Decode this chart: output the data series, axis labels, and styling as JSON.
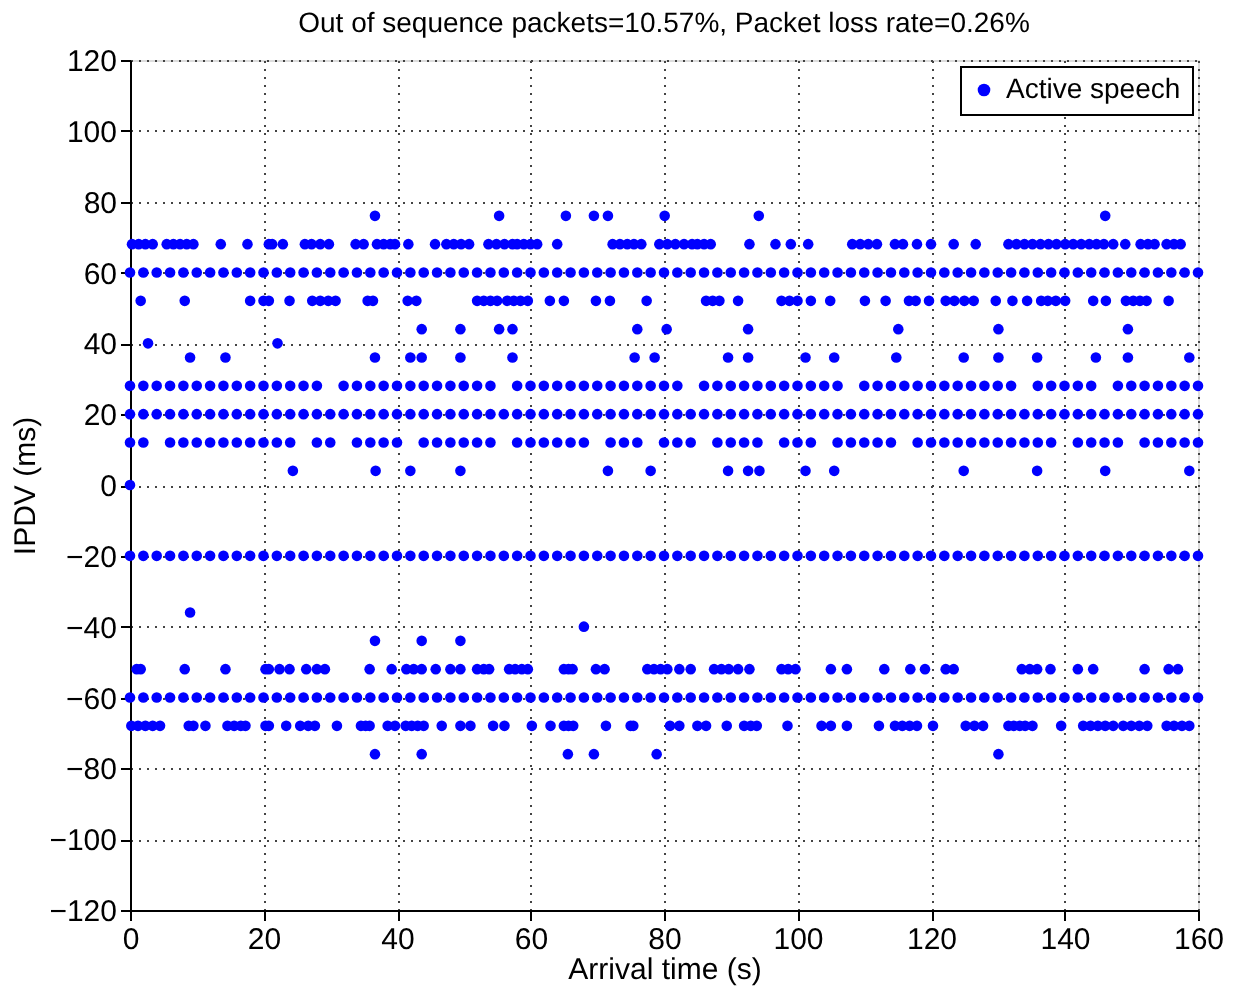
{
  "chart_data": {
    "type": "scatter",
    "title": "Out of sequence packets=10.57%, Packet loss rate=0.26%",
    "xlabel": "Arrival time (s)",
    "ylabel": "IPDV (ms)",
    "xlim": [
      0,
      160
    ],
    "xticks": [
      0,
      20,
      40,
      60,
      80,
      100,
      120,
      140,
      160
    ],
    "ylim": [
      -120,
      120
    ],
    "yticks": [
      -120,
      -100,
      -80,
      -60,
      -40,
      -20,
      0,
      20,
      40,
      60,
      80,
      100,
      120
    ],
    "grid": true,
    "legend": "top right",
    "marker": "circle",
    "series": [
      {
        "name": "Active speech",
        "color": "#0000ff",
        "x": [
          0,
          2,
          4,
          6,
          8,
          10,
          12,
          14,
          16,
          18,
          20,
          22,
          24,
          26,
          28,
          30,
          32,
          34,
          36,
          38,
          40,
          42,
          44,
          46,
          48,
          50,
          52,
          54,
          56,
          58,
          60,
          62,
          64,
          66,
          68,
          70,
          72,
          74,
          76,
          78,
          80,
          82,
          84,
          86,
          88,
          90,
          92,
          94,
          96,
          98,
          100,
          102,
          104,
          106,
          108,
          110,
          112,
          114,
          116,
          118,
          120,
          122,
          124,
          126,
          128,
          130,
          132,
          134,
          136,
          138,
          140,
          142,
          144,
          146,
          148,
          150,
          152,
          154,
          156,
          158,
          160
        ],
        "values": [
          60,
          60,
          60,
          60,
          60,
          60,
          60,
          60,
          60,
          60,
          60,
          60,
          60,
          60,
          60,
          60,
          60,
          60,
          60,
          60,
          60,
          60,
          60,
          60,
          60,
          60,
          60,
          60,
          60,
          60,
          60,
          60,
          60,
          60,
          60,
          60,
          60,
          60,
          60,
          60,
          60,
          60,
          60,
          60,
          60,
          60,
          60,
          60,
          60,
          60,
          60,
          60,
          60,
          60,
          60,
          60,
          60,
          60,
          60,
          60,
          60,
          60,
          60,
          60,
          60,
          60,
          60,
          60,
          60,
          60,
          60,
          60,
          60,
          60,
          60,
          60,
          60,
          60,
          60,
          60,
          60
        ]
      },
      {
        "color": "#0000ff",
        "x": [
          0,
          2,
          4,
          6,
          8,
          10,
          12,
          14,
          16,
          18,
          20,
          22,
          24,
          26,
          28,
          30,
          32,
          34,
          36,
          38,
          40,
          42,
          44,
          46,
          48,
          50,
          52,
          54,
          56,
          58,
          60,
          62,
          64,
          66,
          68,
          70,
          72,
          74,
          76,
          78,
          80,
          82,
          84,
          86,
          88,
          90,
          92,
          94,
          96,
          98,
          100,
          102,
          104,
          106,
          108,
          110,
          112,
          114,
          116,
          118,
          120,
          122,
          124,
          126,
          128,
          130,
          132,
          134,
          136,
          138,
          140,
          142,
          144,
          146,
          148,
          150,
          152,
          154,
          156,
          158,
          160
        ],
        "values": [
          20,
          20,
          20,
          20,
          20,
          20,
          20,
          20,
          20,
          20,
          20,
          20,
          20,
          20,
          20,
          20,
          20,
          20,
          20,
          20,
          20,
          20,
          20,
          20,
          20,
          20,
          20,
          20,
          20,
          20,
          20,
          20,
          20,
          20,
          20,
          20,
          20,
          20,
          20,
          20,
          20,
          20,
          20,
          20,
          20,
          20,
          20,
          20,
          20,
          20,
          20,
          20,
          20,
          20,
          20,
          20,
          20,
          20,
          20,
          20,
          20,
          20,
          20,
          20,
          20,
          20,
          20,
          20,
          20,
          20,
          20,
          20,
          20,
          20,
          20,
          20,
          20,
          20,
          20,
          20,
          20
        ]
      },
      {
        "color": "#0000ff",
        "x": [
          0,
          2,
          4,
          6,
          8,
          10,
          12,
          14,
          16,
          18,
          20,
          22,
          24,
          26,
          28,
          30,
          32,
          34,
          36,
          38,
          40,
          42,
          44,
          46,
          48,
          50,
          52,
          54,
          56,
          58,
          60,
          62,
          64,
          66,
          68,
          70,
          72,
          74,
          76,
          78,
          80,
          82,
          84,
          86,
          88,
          90,
          92,
          94,
          96,
          98,
          100,
          102,
          104,
          106,
          108,
          110,
          112,
          114,
          116,
          118,
          120,
          122,
          124,
          126,
          128,
          130,
          132,
          134,
          136,
          138,
          140,
          142,
          144,
          146,
          148,
          150,
          152,
          154,
          156,
          158,
          160
        ],
        "values": [
          -20,
          -20,
          -20,
          -20,
          -20,
          -20,
          -20,
          -20,
          -20,
          -20,
          -20,
          -20,
          -20,
          -20,
          -20,
          -20,
          -20,
          -20,
          -20,
          -20,
          -20,
          -20,
          -20,
          -20,
          -20,
          -20,
          -20,
          -20,
          -20,
          -20,
          -20,
          -20,
          -20,
          -20,
          -20,
          -20,
          -20,
          -20,
          -20,
          -20,
          -20,
          -20,
          -20,
          -20,
          -20,
          -20,
          -20,
          -20,
          -20,
          -20,
          -20,
          -20,
          -20,
          -20,
          -20,
          -20,
          -20,
          -20,
          -20,
          -20,
          -20,
          -20,
          -20,
          -20,
          -20,
          -20,
          -20,
          -20,
          -20,
          -20,
          -20,
          -20,
          -20,
          -20,
          -20,
          -20,
          -20,
          -20,
          -20,
          -20,
          -20
        ]
      },
      {
        "color": "#0000ff",
        "x": [
          0,
          2,
          4,
          6,
          8,
          10,
          12,
          14,
          16,
          18,
          20,
          22,
          24,
          26,
          28,
          30,
          32,
          34,
          36,
          38,
          40,
          42,
          44,
          46,
          48,
          50,
          52,
          54,
          56,
          58,
          60,
          62,
          64,
          66,
          68,
          70,
          72,
          74,
          76,
          78,
          80,
          82,
          84,
          86,
          88,
          90,
          92,
          94,
          96,
          98,
          100,
          102,
          104,
          106,
          108,
          110,
          112,
          114,
          116,
          118,
          120,
          122,
          124,
          126,
          128,
          130,
          132,
          134,
          136,
          138,
          140,
          142,
          144,
          146,
          148,
          150,
          152,
          154,
          156,
          158,
          160
        ],
        "values": [
          -60,
          -60,
          -60,
          -60,
          -60,
          -60,
          -60,
          -60,
          -60,
          -60,
          -60,
          -60,
          -60,
          -60,
          -60,
          -60,
          -60,
          -60,
          -60,
          -60,
          -60,
          -60,
          -60,
          -60,
          -60,
          -60,
          -60,
          -60,
          -60,
          -60,
          -60,
          -60,
          -60,
          -60,
          -60,
          -60,
          -60,
          -60,
          -60,
          -60,
          -60,
          -60,
          -60,
          -60,
          -60,
          -60,
          -60,
          -60,
          -60,
          -60,
          -60,
          -60,
          -60,
          -60,
          -60,
          -60,
          -60,
          -60,
          -60,
          -60,
          -60,
          -60,
          -60,
          -60,
          -60,
          -60,
          -60,
          -60,
          -60,
          -60,
          -60,
          -60,
          -60,
          -60,
          -60,
          -60,
          -60,
          -60,
          -60,
          -60,
          -60
        ]
      },
      {
        "color": "#0000ff",
        "x": [
          0,
          2,
          4,
          6,
          8,
          10,
          12,
          14,
          16,
          18,
          20,
          22,
          24,
          26,
          28,
          32,
          34,
          36,
          38,
          40,
          42,
          44,
          46,
          48,
          50,
          52,
          54,
          58,
          60,
          62,
          64,
          66,
          68,
          70,
          72,
          74,
          76,
          78,
          80,
          82,
          86,
          88,
          90,
          92,
          94,
          96,
          98,
          100,
          102,
          104,
          106,
          110,
          112,
          114,
          116,
          118,
          120,
          122,
          124,
          126,
          128,
          130,
          132,
          136,
          138,
          140,
          142,
          144,
          148,
          150,
          152,
          154,
          156,
          158,
          160
        ],
        "values": [
          28,
          28,
          28,
          28,
          28,
          28,
          28,
          28,
          28,
          28,
          28,
          28,
          28,
          28,
          28,
          28,
          28,
          28,
          28,
          28,
          28,
          28,
          28,
          28,
          28,
          28,
          28,
          28,
          28,
          28,
          28,
          28,
          28,
          28,
          28,
          28,
          28,
          28,
          28,
          28,
          28,
          28,
          28,
          28,
          28,
          28,
          28,
          28,
          28,
          28,
          28,
          28,
          28,
          28,
          28,
          28,
          28,
          28,
          28,
          28,
          28,
          28,
          28,
          28,
          28,
          28,
          28,
          28,
          28,
          28,
          28,
          28,
          28,
          28,
          28
        ]
      },
      {
        "color": "#0000ff",
        "x": [
          0,
          2,
          6,
          8,
          10,
          12,
          14,
          16,
          18,
          20,
          22,
          24,
          28,
          30,
          34,
          36,
          38,
          40,
          44,
          46,
          48,
          50,
          52,
          54,
          58,
          60,
          62,
          64,
          66,
          68,
          72,
          74,
          76,
          80,
          82,
          84,
          88,
          90,
          92,
          94,
          98,
          100,
          102,
          106,
          108,
          110,
          112,
          114,
          118,
          120,
          122,
          124,
          126,
          128,
          130,
          132,
          134,
          136,
          138,
          142,
          144,
          146,
          148,
          152,
          154,
          156,
          158,
          160
        ],
        "values": [
          12,
          12,
          12,
          12,
          12,
          12,
          12,
          12,
          12,
          12,
          12,
          12,
          12,
          12,
          12,
          12,
          12,
          12,
          12,
          12,
          12,
          12,
          12,
          12,
          12,
          12,
          12,
          12,
          12,
          12,
          12,
          12,
          12,
          12,
          12,
          12,
          12,
          12,
          12,
          12,
          12,
          12,
          12,
          12,
          12,
          12,
          12,
          12,
          12,
          12,
          12,
          12,
          12,
          12,
          12,
          12,
          12,
          12,
          12,
          12,
          12,
          12,
          12,
          12,
          12,
          12,
          12,
          12
        ]
      },
      {
        "color": "#0000ff",
        "x": [
          0.3,
          1.3,
          2.3,
          3.4,
          5.5,
          6.5,
          7.5,
          8.5,
          9.5,
          13.6,
          17.6,
          20.8,
          21.3,
          22.9,
          26.2,
          27.2,
          28.5,
          29.8,
          33.8,
          35,
          37,
          38,
          39,
          39.7,
          41.7,
          45.7,
          47.4,
          48.5,
          49.6,
          50.8,
          53.7,
          54.9,
          56.1,
          57.3,
          58,
          59,
          60,
          61,
          64,
          72.3,
          73.4,
          74.5,
          75.5,
          76.6,
          79.3,
          80.5,
          81.7,
          83,
          84.2,
          85,
          86,
          87,
          92.8,
          96.7,
          99,
          101.6,
          108.2,
          109.4,
          110.6,
          111.9,
          114.6,
          115.8,
          117.9,
          120,
          123.4,
          126.7,
          131.6,
          132.8,
          134,
          135.2,
          136.4,
          137.6,
          138.8,
          140.1,
          141.3,
          142.5,
          143.7,
          144.8,
          145.9,
          147.3,
          149.1,
          151.4,
          152.5,
          153.5,
          155.3,
          156.4,
          157.4
        ],
        "values": [
          68,
          68,
          68,
          68,
          68,
          68,
          68,
          68,
          68,
          68,
          68,
          68,
          68,
          68,
          68,
          68,
          68,
          68,
          68,
          68,
          68,
          68,
          68,
          68,
          68,
          68,
          68,
          68,
          68,
          68,
          68,
          68,
          68,
          68,
          68,
          68,
          68,
          68,
          68,
          68,
          68,
          68,
          68,
          68,
          68,
          68,
          68,
          68,
          68,
          68,
          68,
          68,
          68,
          68,
          68,
          68,
          68,
          68,
          68,
          68,
          68,
          68,
          68,
          68,
          68,
          68,
          68,
          68,
          68,
          68,
          68,
          68,
          68,
          68,
          68,
          68,
          68,
          68,
          68,
          68,
          68,
          68,
          68,
          68,
          68,
          68,
          68
        ]
      },
      {
        "color": "#0000ff",
        "x": [
          1.6,
          8.2,
          18,
          20,
          20.8,
          23.9,
          27.3,
          28.5,
          29.7,
          30.8,
          35.6,
          36.4,
          41.6,
          42.9,
          52,
          53,
          54,
          55,
          56.5,
          57.5,
          58.5,
          59.6,
          62.9,
          65,
          69.8,
          71.9,
          77.4,
          86.3,
          87.3,
          88.3,
          91.1,
          97.6,
          98.8,
          100,
          102,
          104.9,
          110.1,
          113.2,
          116.7,
          117.7,
          119.7,
          122.2,
          123.5,
          125,
          126.4,
          129.7,
          132.2,
          134.4,
          136.5,
          137.5,
          138.7,
          140.1,
          144.3,
          146.2,
          149.2,
          150.3,
          151.3,
          152.3,
          155.6
        ],
        "values": [
          52,
          52,
          52,
          52,
          52,
          52,
          52,
          52,
          52,
          52,
          52,
          52,
          52,
          52,
          52,
          52,
          52,
          52,
          52,
          52,
          52,
          52,
          52,
          52,
          52,
          52,
          52,
          52,
          52,
          52,
          52,
          52,
          52,
          52,
          52,
          52,
          52,
          52,
          52,
          52,
          52,
          52,
          52,
          52,
          52,
          52,
          52,
          52,
          52,
          52,
          52,
          52,
          52,
          52,
          52,
          52,
          52,
          52,
          52
        ]
      },
      {
        "color": "#0000ff",
        "x": [
          36.7,
          55.3,
          65.3,
          69.5,
          71.6,
          80.1,
          94.2,
          146.1
        ],
        "values": [
          76,
          76,
          76,
          76,
          76,
          76,
          76,
          76
        ]
      },
      {
        "color": "#0000ff",
        "x": [
          43.7,
          49.5,
          55.3,
          57.3,
          76,
          80.4,
          92.6,
          115.1,
          130.1,
          149.5
        ],
        "values": [
          44,
          44,
          44,
          44,
          44,
          44,
          44,
          44,
          44,
          44
        ]
      },
      {
        "color": "#0000ff",
        "x": [
          2.7,
          22.1
        ],
        "values": [
          40,
          40
        ]
      },
      {
        "color": "#0000ff",
        "x": [
          9,
          14.3,
          36.7,
          42,
          43.7,
          49.5,
          57.3,
          75.6,
          78.6,
          89.6,
          92.6,
          101.2,
          105.5,
          114.8,
          124.9,
          130.1,
          135.9,
          144.7,
          149.5,
          158.7
        ],
        "values": [
          36,
          36,
          36,
          36,
          36,
          36,
          36,
          36,
          36,
          36,
          36,
          36,
          36,
          36,
          36,
          36,
          36,
          36,
          36,
          36
        ]
      },
      {
        "color": "#0000ff",
        "x": [
          24.4,
          36.8,
          42,
          49.5,
          71.6,
          78,
          89.6,
          92.6,
          94.3,
          101.2,
          105.5,
          124.9,
          135.9,
          146.1,
          158.7
        ],
        "values": [
          4,
          4,
          4,
          4,
          4,
          4,
          4,
          4,
          4,
          4,
          4,
          4,
          4,
          4,
          4
        ]
      },
      {
        "color": "#0000ff",
        "x": [
          0
        ],
        "values": [
          0
        ]
      },
      {
        "color": "#0000ff",
        "x": [
          9
        ],
        "values": [
          -36
        ]
      },
      {
        "color": "#0000ff",
        "x": [
          68
        ],
        "values": [
          -40
        ]
      },
      {
        "color": "#0000ff",
        "x": [
          36.7,
          43.7,
          49.5
        ],
        "values": [
          -44,
          -44,
          -44
        ]
      },
      {
        "color": "#0000ff",
        "x": [
          1,
          1.6,
          8.2,
          14.3,
          20.3,
          20.8,
          22.4,
          23.9,
          26.4,
          28,
          29.2,
          35.9,
          39.2,
          41.4,
          42.5,
          43.7,
          45.8,
          48,
          49.5,
          52,
          53,
          53.8,
          56.8,
          57.7,
          58.7,
          59.6,
          65,
          65.7,
          66.3,
          69.8,
          71.1,
          77.5,
          78.5,
          79.5,
          80.5,
          82.3,
          84,
          87.5,
          88.6,
          89.7,
          91.1,
          92.8,
          97.6,
          98.6,
          99.7,
          105,
          107.4,
          113,
          116.9,
          119.1,
          122.2,
          123.4,
          133.6,
          134.8,
          135.9,
          137.9,
          142,
          144.3,
          152,
          155.6,
          157
        ],
        "values": [
          -52,
          -52,
          -52,
          -52,
          -52,
          -52,
          -52,
          -52,
          -52,
          -52,
          -52,
          -52,
          -52,
          -52,
          -52,
          -52,
          -52,
          -52,
          -52,
          -52,
          -52,
          -52,
          -52,
          -52,
          -52,
          -52,
          -52,
          -52,
          -52,
          -52,
          -52,
          -52,
          -52,
          -52,
          -52,
          -52,
          -52,
          -52,
          -52,
          -52,
          -52,
          -52,
          -52,
          -52,
          -52,
          -52,
          -52,
          -52,
          -52,
          -52,
          -52,
          -52,
          -52,
          -52,
          -52,
          -52,
          -52,
          -52,
          -52,
          -52,
          -52
        ]
      },
      {
        "color": "#0000ff",
        "x": [
          0.2,
          1.2,
          2.3,
          3.4,
          4.5,
          8.8,
          9.5,
          11.3,
          14.6,
          15.6,
          16.6,
          17.3,
          20.3,
          20.8,
          23.4,
          25.5,
          26.7,
          27.7,
          31,
          34.6,
          35.3,
          35.9,
          38.6,
          39.7,
          41.3,
          42.2,
          43.1,
          44,
          46.7,
          49.5,
          51,
          54.4,
          56.1,
          60.2,
          63,
          65,
          65.7,
          66.4,
          71.3,
          75,
          75.4,
          80.9,
          82.3,
          85,
          86.3,
          89.4,
          92,
          93,
          93.9,
          98.5,
          103.6,
          105,
          107.4,
          112.2,
          114.6,
          115.7,
          116.8,
          117.9,
          120.3,
          125.2,
          126.5,
          127.8,
          131.6,
          132.4,
          133.3,
          134.1,
          135.2,
          139.5,
          142.8,
          143.9,
          145,
          146.1,
          147.3,
          148.8,
          150,
          151.2,
          152.4,
          155.3,
          156.4,
          157.6,
          158.7
        ],
        "values": [
          -68,
          -68,
          -68,
          -68,
          -68,
          -68,
          -68,
          -68,
          -68,
          -68,
          -68,
          -68,
          -68,
          -68,
          -68,
          -68,
          -68,
          -68,
          -68,
          -68,
          -68,
          -68,
          -68,
          -68,
          -68,
          -68,
          -68,
          -68,
          -68,
          -68,
          -68,
          -68,
          -68,
          -68,
          -68,
          -68,
          -68,
          -68,
          -68,
          -68,
          -68,
          -68,
          -68,
          -68,
          -68,
          -68,
          -68,
          -68,
          -68,
          -68,
          -68,
          -68,
          -68,
          -68,
          -68,
          -68,
          -68,
          -68,
          -68,
          -68,
          -68,
          -68,
          -68,
          -68,
          -68,
          -68,
          -68,
          -68,
          -68,
          -68,
          -68,
          -68,
          -68,
          -68,
          -68,
          -68,
          -68,
          -68,
          -68,
          -68,
          -68
        ]
      },
      {
        "color": "#0000ff",
        "x": [
          36.7,
          43.7,
          65.6,
          69.5,
          78.9,
          130.1
        ],
        "values": [
          -76,
          -76,
          -76,
          -76,
          -76,
          -76
        ]
      }
    ]
  }
}
